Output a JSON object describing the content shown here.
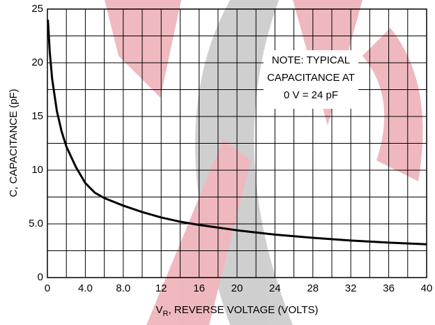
{
  "chart_data": {
    "type": "line",
    "y_label": "C, CAPACITANCE (pF)",
    "x_label": {
      "main": "V",
      "sub": "R",
      "rest": ", REVERSE VOLTAGE (VOLTS)"
    },
    "note": [
      "NOTE: TYPICAL",
      "CAPACITANCE AT",
      "0 V = 24 pF"
    ],
    "x": [
      0.05,
      0.25,
      0.5,
      1,
      1.5,
      2,
      3,
      4,
      5,
      6,
      8,
      10,
      12,
      14,
      16,
      20,
      24,
      28,
      32,
      36,
      40
    ],
    "values": [
      24,
      21,
      18.5,
      15.5,
      13.6,
      12.2,
      10.3,
      8.8,
      7.9,
      7.4,
      6.7,
      6.1,
      5.6,
      5.2,
      4.9,
      4.4,
      4.0,
      3.7,
      3.45,
      3.25,
      3.1
    ],
    "color": "#000000",
    "xlim": [
      0,
      40
    ],
    "ylim": [
      0,
      25
    ],
    "xticks": [
      0,
      {
        "value": 4,
        "label": "4.0"
      },
      {
        "value": 8,
        "label": "8.0"
      },
      12,
      16,
      20,
      24,
      28,
      32,
      36,
      40
    ],
    "yticks": [
      0,
      {
        "value": 5,
        "label": "5.0"
      },
      10,
      15,
      20,
      25
    ],
    "x_minor_grid": [
      2,
      6,
      10,
      14,
      18,
      22,
      26,
      30,
      34,
      38
    ],
    "y_minor_grid": [
      2.5,
      7.5,
      12.5,
      17.5,
      22.5
    ],
    "grid": true
  }
}
